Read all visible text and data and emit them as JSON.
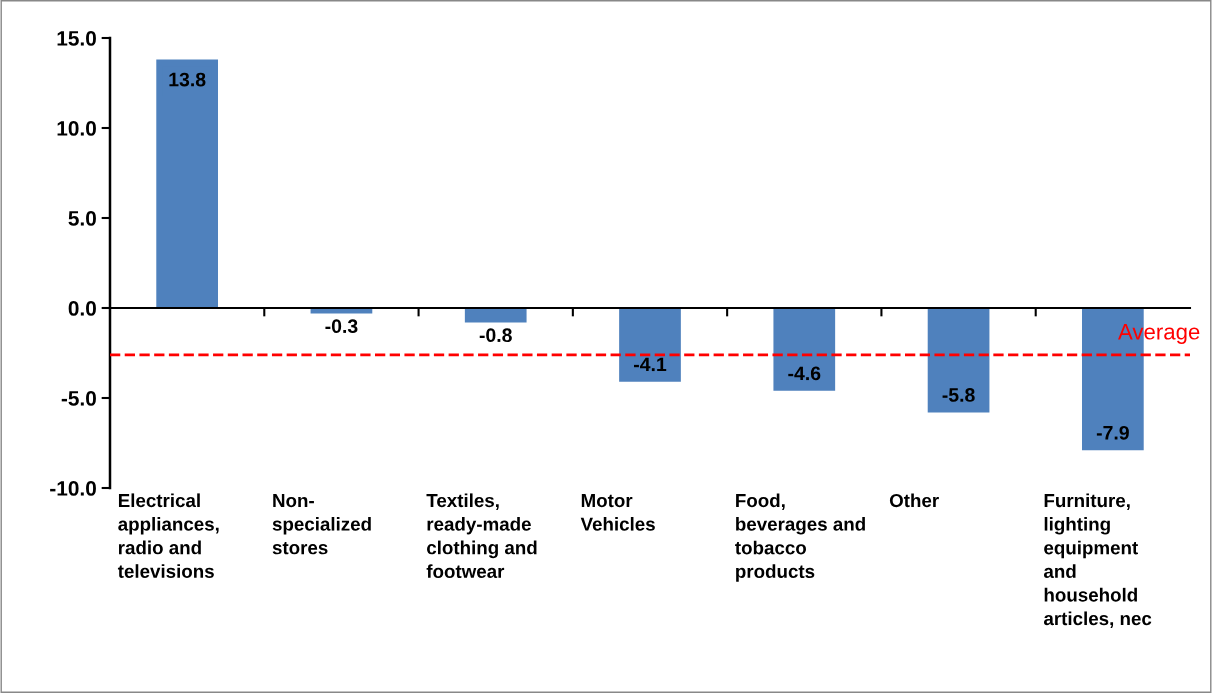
{
  "chart_data": {
    "type": "bar",
    "categories": [
      "Electrical\nappliances,\nradio and\ntelevisions",
      "Non-\nspecialized\nstores",
      "Textiles,\nready-made\nclothing and\nfootwear",
      "Motor\nVehicles",
      "Food,\nbeverages and\ntobacco\nproducts",
      "Other",
      "Furniture,\nlighting\nequipment\nand\nhousehold\narticles, nec"
    ],
    "values": [
      13.8,
      -0.3,
      -0.8,
      -4.1,
      -4.6,
      -5.8,
      -7.9
    ],
    "color": "#4f81bd",
    "data_labels": true,
    "ylim": [
      -10,
      15
    ],
    "yticks": [
      {
        "value": -10,
        "label": "-10.0"
      },
      {
        "value": -5,
        "label": "-5.0"
      },
      {
        "value": 0,
        "label": "0.0"
      },
      {
        "value": 5,
        "label": "5.0"
      },
      {
        "value": 10,
        "label": "10.0"
      },
      {
        "value": 15,
        "label": "15.0"
      }
    ],
    "ref_lines": [
      {
        "axis": "y",
        "value": -2.6,
        "label": "Average",
        "color": "#ff0000",
        "line_style": "dashed"
      }
    ],
    "legend": false
  }
}
